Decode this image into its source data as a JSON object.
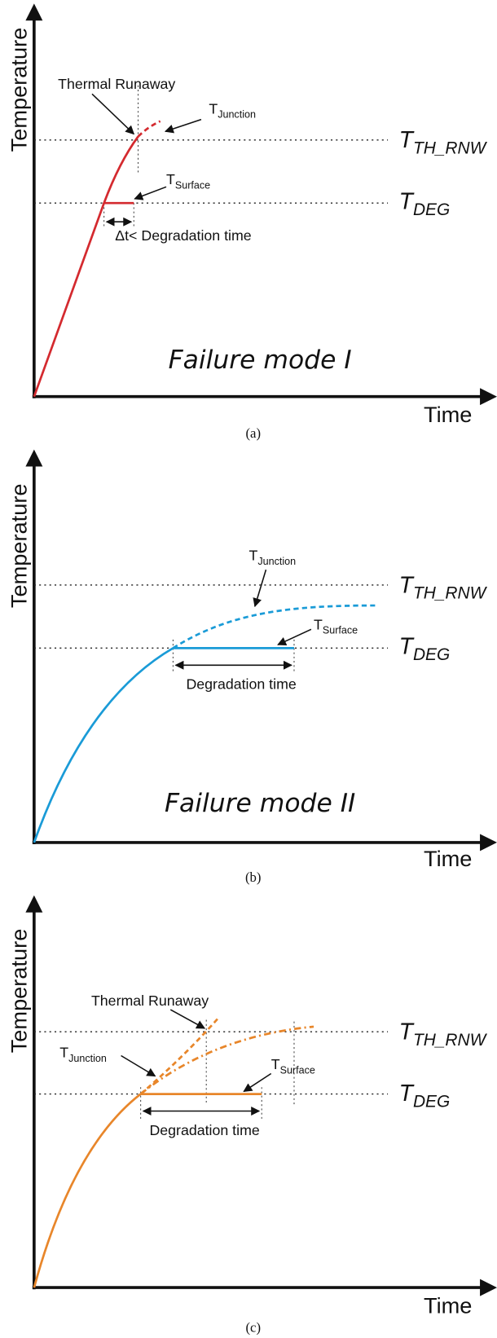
{
  "panels": [
    {
      "caption": "(a)",
      "y_label": "Temperature",
      "x_label": "Time",
      "color": "#d42a2f",
      "mode_label": "Failure mode I",
      "thermal_runaway": "Thermal Runaway",
      "t_junction": {
        "base": "T",
        "sub": "Junction"
      },
      "t_surface": {
        "base": "T",
        "sub": "Surface"
      },
      "t_th_rnw": {
        "base": "T",
        "sub": "TH_RNW"
      },
      "t_deg": {
        "base": "T",
        "sub": "DEG"
      },
      "interval_label": "Δt< Degradation time"
    },
    {
      "caption": "(b)",
      "y_label": "Temperature",
      "x_label": "Time",
      "color": "#1a9bd7",
      "mode_label": "Failure mode II",
      "t_junction": {
        "base": "T",
        "sub": "Junction"
      },
      "t_surface": {
        "base": "T",
        "sub": "Surface"
      },
      "t_th_rnw": {
        "base": "T",
        "sub": "TH_RNW"
      },
      "t_deg": {
        "base": "T",
        "sub": "DEG"
      },
      "interval_label": "Degradation time"
    },
    {
      "caption": "(c)",
      "y_label": "Temperature",
      "x_label": "Time",
      "color": "#e8862a",
      "thermal_runaway": "Thermal Runaway",
      "t_junction": {
        "base": "T",
        "sub": "Junction"
      },
      "t_surface": {
        "base": "T",
        "sub": "Surface"
      },
      "t_th_rnw": {
        "base": "T",
        "sub": "TH_RNW"
      },
      "t_deg": {
        "base": "T",
        "sub": "DEG"
      },
      "interval_label": "Degradation time"
    }
  ]
}
